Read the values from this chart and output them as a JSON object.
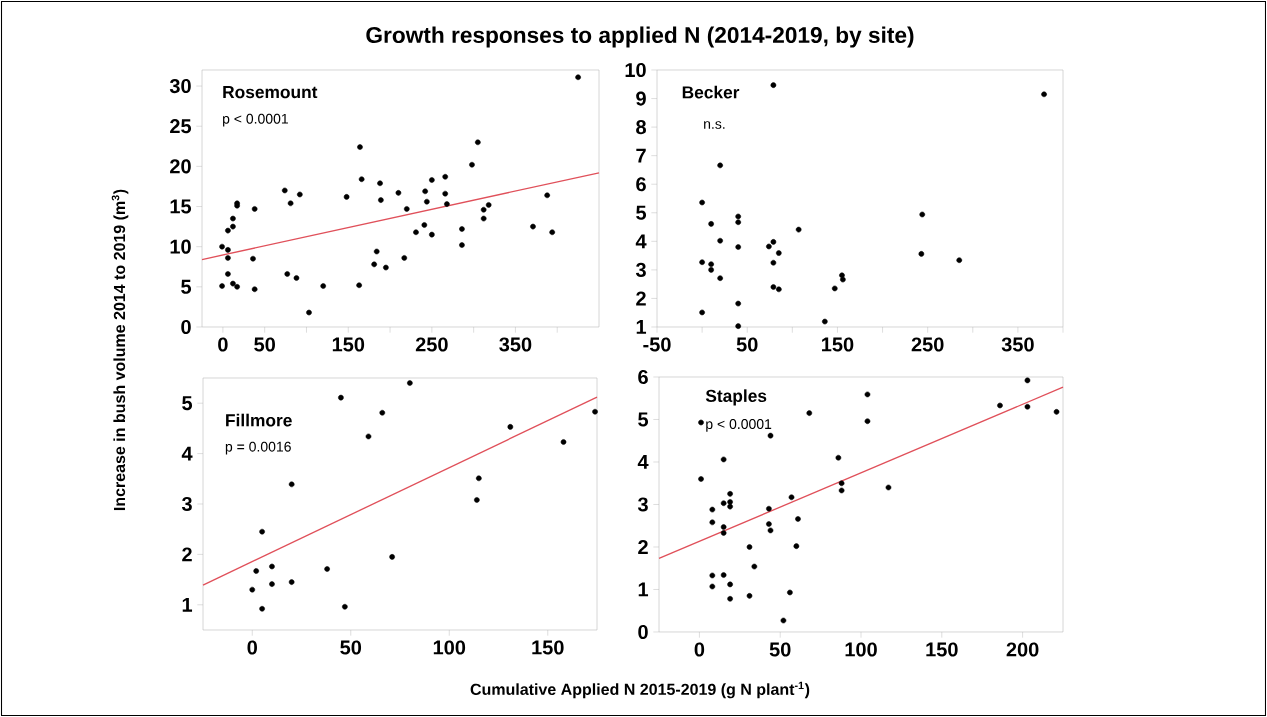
{
  "chart_data": [
    {
      "type": "scatter",
      "title": "Growth responses to applied N (2014-2019, by site)",
      "ylabel": "Increase in bush volume 2014 to 2019 (m$^{3}$)",
      "xlabel": "Cumulative Applied N 2015-2019 (g N plant$^{-1}$)",
      "annotations": [
        "Rosemount",
        "p < 0.0001"
      ],
      "marker": "circle",
      "xlim": [
        -25,
        450
      ],
      "ylim": [
        0,
        32
      ],
      "xticks": [
        0,
        50,
        {
          "value": 100,
          "label": null
        },
        150,
        {
          "value": 200,
          "label": null
        },
        250,
        {
          "value": 300,
          "label": null
        },
        350,
        {
          "value": 400,
          "label": null
        }
      ],
      "yticks": [
        0,
        5,
        10,
        15,
        20,
        25,
        30
      ],
      "series": [
        {
          "color": "#000000",
          "x": [
            -1,
            -1,
            6,
            6,
            6,
            6,
            12,
            12,
            12,
            17,
            17,
            17,
            36,
            38,
            38,
            74,
            77,
            81,
            88,
            92,
            103,
            120,
            148,
            163,
            164,
            166,
            181,
            184,
            188,
            189,
            195,
            210,
            217,
            220,
            231,
            241,
            242,
            244,
            250,
            250,
            266,
            266,
            268,
            286,
            286,
            298,
            305,
            312,
            312,
            318,
            371,
            388,
            394,
            425
          ],
          "values": [
            10.0,
            5.1,
            9.6,
            8.6,
            6.6,
            12.0,
            13.5,
            12.5,
            5.4,
            15.4,
            15.1,
            5.0,
            8.5,
            14.7,
            4.7,
            17.0,
            6.6,
            15.4,
            6.1,
            16.5,
            1.8,
            5.1,
            16.2,
            5.2,
            22.4,
            18.4,
            7.8,
            9.4,
            17.9,
            15.8,
            7.4,
            16.7,
            8.6,
            14.7,
            11.8,
            12.7,
            16.9,
            15.6,
            18.3,
            11.5,
            18.7,
            16.6,
            15.3,
            12.2,
            10.2,
            20.2,
            23.0,
            14.6,
            13.5,
            15.2,
            12.5,
            16.4,
            11.8,
            31.1
          ]
        },
        {
          "type": "line",
          "marker": "none",
          "color": "#e0505a",
          "x": [
            -25,
            450
          ],
          "values": [
            8.4,
            19.2
          ]
        }
      ]
    },
    {
      "type": "scatter",
      "annotations": [
        "Becker",
        "n.s."
      ],
      "marker": "circle",
      "xlim": [
        -50,
        400
      ],
      "ylim": [
        1,
        10
      ],
      "xticks": [
        -50,
        {
          "value": 0,
          "label": null
        },
        50,
        {
          "value": 100,
          "label": null
        },
        150,
        {
          "value": 200,
          "label": null
        },
        250,
        {
          "value": 300,
          "label": null
        },
        350,
        {
          "value": 400,
          "label": null
        }
      ],
      "yticks": [
        1,
        2,
        3,
        4,
        5,
        6,
        7,
        8,
        9,
        10
      ],
      "series": [
        {
          "color": "#000000",
          "x": [
            79,
            379,
            20,
            0,
            10,
            20,
            40,
            40,
            40,
            0,
            10,
            10,
            20,
            0,
            40,
            40,
            74,
            79,
            85,
            79,
            79,
            85,
            107,
            136,
            147,
            155,
            156,
            244,
            243,
            285
          ],
          "values": [
            9.47,
            9.15,
            6.66,
            5.36,
            4.61,
            4.02,
            4.87,
            4.67,
            3.8,
            3.27,
            3.2,
            3.0,
            2.71,
            1.51,
            1.82,
            1.03,
            3.82,
            3.98,
            3.59,
            3.25,
            2.4,
            2.32,
            4.41,
            1.19,
            2.35,
            2.81,
            2.66,
            4.94,
            3.56,
            3.34
          ]
        }
      ]
    },
    {
      "type": "scatter",
      "annotations": [
        "Fillmore",
        "p = 0.0016"
      ],
      "marker": "circle",
      "xlim": [
        -25,
        175
      ],
      "ylim": [
        0.5,
        5.5
      ],
      "xticks": [
        0,
        50,
        100,
        150
      ],
      "yticks": [
        1,
        2,
        3,
        4,
        5
      ],
      "series": [
        {
          "color": "#000000",
          "x": [
            0,
            5,
            5,
            2,
            10,
            10,
            20,
            20,
            38,
            45,
            47,
            59,
            66,
            71,
            80,
            114,
            115,
            131,
            158,
            174
          ],
          "values": [
            1.3,
            0.92,
            2.45,
            1.67,
            1.76,
            1.41,
            3.39,
            1.45,
            1.71,
            5.11,
            0.96,
            4.34,
            4.81,
            1.95,
            5.4,
            3.08,
            3.51,
            4.53,
            4.23,
            4.83
          ]
        },
        {
          "type": "line",
          "marker": "none",
          "color": "#e0505a",
          "x": [
            -25,
            175
          ],
          "values": [
            1.39,
            5.12
          ]
        }
      ]
    },
    {
      "type": "scatter",
      "annotations": [
        "Staples",
        "p < 0.0001"
      ],
      "marker": "circle",
      "xlim": [
        -25,
        225
      ],
      "ylim": [
        0,
        6
      ],
      "xticks": [
        0,
        50,
        100,
        150,
        200
      ],
      "yticks": [
        0,
        1,
        2,
        3,
        4,
        5,
        6
      ],
      "series": [
        {
          "color": "#000000",
          "x": [
            1,
            1,
            8,
            8,
            8,
            8,
            15,
            15,
            15,
            15,
            15,
            19,
            19,
            19,
            19,
            19,
            31,
            31,
            34,
            43,
            43,
            44,
            44,
            52,
            56,
            57,
            60,
            61,
            68,
            86,
            88,
            88,
            104,
            104,
            117,
            186,
            203,
            203,
            221
          ],
          "values": [
            4.93,
            3.6,
            2.88,
            2.58,
            1.33,
            1.07,
            4.06,
            3.03,
            2.47,
            2.33,
            1.34,
            3.25,
            3.06,
            2.95,
            1.12,
            0.78,
            2.0,
            0.85,
            1.54,
            2.9,
            2.54,
            2.39,
            4.62,
            0.27,
            0.93,
            3.17,
            2.02,
            2.66,
            5.15,
            4.1,
            3.5,
            3.33,
            5.59,
            4.96,
            3.4,
            5.33,
            5.92,
            5.3,
            5.18
          ]
        },
        {
          "type": "line",
          "marker": "none",
          "color": "#e0505a",
          "x": [
            -25,
            225
          ],
          "values": [
            1.73,
            5.76
          ]
        }
      ]
    }
  ]
}
